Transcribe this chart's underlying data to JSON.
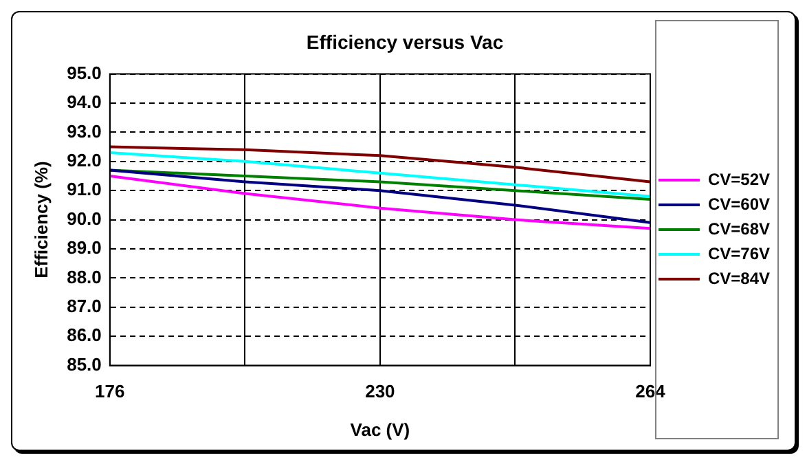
{
  "chart_data": {
    "type": "line",
    "title": "Efficiency versus Vac",
    "xlabel": "Vac (V)",
    "ylabel": "Efficiency (%)",
    "categories": [
      "176",
      null,
      "230",
      null,
      "264"
    ],
    "series": [
      {
        "name": "CV=52V",
        "color": "#ff00ff",
        "values": [
          91.5,
          90.9,
          90.4,
          90.0,
          89.7
        ]
      },
      {
        "name": "CV=60V",
        "color": "#000080",
        "values": [
          91.7,
          91.3,
          91.0,
          90.5,
          89.9
        ]
      },
      {
        "name": "CV=68V",
        "color": "#008000",
        "values": [
          91.7,
          91.5,
          91.3,
          91.0,
          90.7
        ]
      },
      {
        "name": "CV=76V",
        "color": "#00ffff",
        "values": [
          92.3,
          92.0,
          91.6,
          91.2,
          90.8
        ]
      },
      {
        "name": "CV=84V",
        "color": "#800000",
        "values": [
          92.5,
          92.4,
          92.2,
          91.8,
          91.3
        ]
      }
    ],
    "ylim": [
      85,
      95
    ],
    "yticks": [
      {
        "value": 85,
        "label": "85.0"
      },
      {
        "value": 86,
        "label": "86.0"
      },
      {
        "value": 87,
        "label": "87.0"
      },
      {
        "value": 88,
        "label": "88.0"
      },
      {
        "value": 89,
        "label": "89.0"
      },
      {
        "value": 90,
        "label": "90.0"
      },
      {
        "value": 91,
        "label": "91.0"
      },
      {
        "value": 92,
        "label": "92.0"
      },
      {
        "value": 93,
        "label": "93.0"
      },
      {
        "value": 94,
        "label": "94.0"
      },
      {
        "value": 95,
        "label": "95.0"
      }
    ],
    "grid": true,
    "legend": "right",
    "marker": "none",
    "line_style": "solid"
  }
}
